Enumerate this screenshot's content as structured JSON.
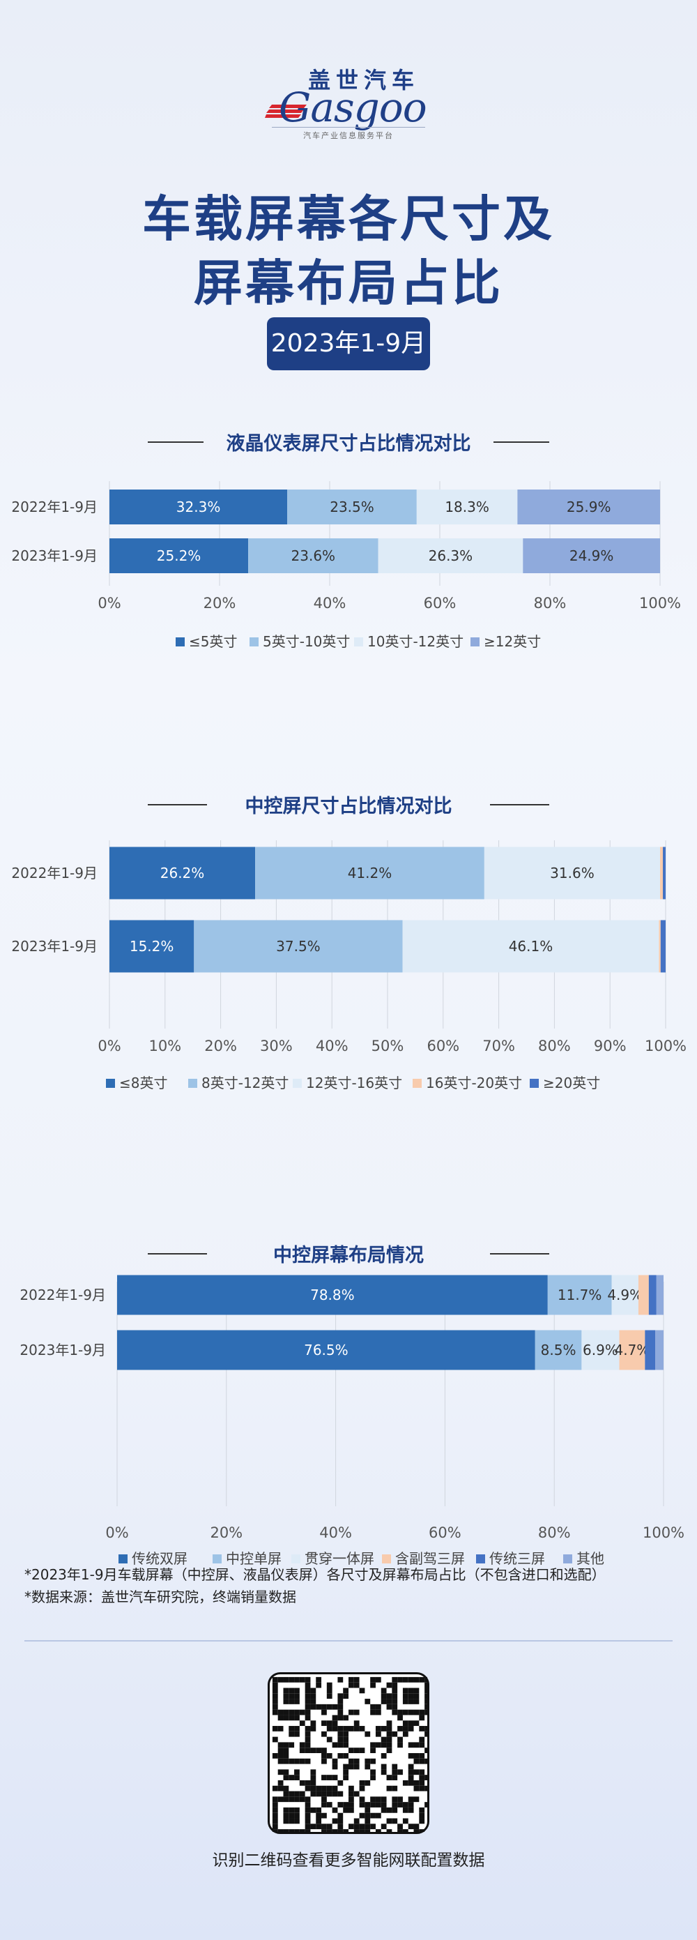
{
  "brand": {
    "name_cn": "盖世汽车",
    "name_en": "Gasgoo",
    "tagline": "汽车产业信息服务平台"
  },
  "title": {
    "line1": "车载屏幕各尺寸及",
    "line2": "屏幕布局占比"
  },
  "period_badge": "2023年1-9月",
  "colors": {
    "title": "#1e3f85",
    "series": [
      "#2e6db4",
      "#9dc3e6",
      "#deebf7",
      "#f8cbad",
      "#4472c4",
      "#8faadc"
    ]
  },
  "chart_data": [
    {
      "type": "bar",
      "orientation": "horizontal",
      "stacked": true,
      "title": "液晶仪表屏尺寸占比情况对比",
      "categories": [
        "2022年1-9月",
        "2023年1-9月"
      ],
      "series": [
        {
          "name": "≤5英寸",
          "color": "#2e6db4",
          "values": [
            32.3,
            25.2
          ],
          "labels": [
            "32.3%",
            "25.2%"
          ]
        },
        {
          "name": "5英寸-10英寸",
          "color": "#9dc3e6",
          "values": [
            23.5,
            23.6
          ],
          "labels": [
            "23.5%",
            "23.6%"
          ]
        },
        {
          "name": "10英寸-12英寸",
          "color": "#deebf7",
          "values": [
            18.3,
            26.3
          ],
          "labels": [
            "18.3%",
            "26.3%"
          ]
        },
        {
          "name": "≥12英寸",
          "color": "#8faadc",
          "values": [
            25.9,
            24.9
          ],
          "labels": [
            "25.9%",
            "24.9%"
          ]
        }
      ],
      "xlim": [
        0,
        100
      ],
      "xticks": [
        "0%",
        "20%",
        "40%",
        "60%",
        "80%",
        "100%"
      ],
      "legend": "bottom",
      "grid": true
    },
    {
      "type": "bar",
      "orientation": "horizontal",
      "stacked": true,
      "title": "中控屏尺寸占比情况对比",
      "categories": [
        "2022年1-9月",
        "2023年1-9月"
      ],
      "series": [
        {
          "name": "≤8英寸",
          "color": "#2e6db4",
          "values": [
            26.2,
            15.2
          ],
          "labels": [
            "26.2%",
            "15.2%"
          ]
        },
        {
          "name": "8英寸-12英寸",
          "color": "#9dc3e6",
          "values": [
            41.2,
            37.5
          ],
          "labels": [
            "41.2%",
            "37.5%"
          ]
        },
        {
          "name": "12英寸-16英寸",
          "color": "#deebf7",
          "values": [
            31.6,
            46.1
          ],
          "labels": [
            "31.6%",
            "46.1%"
          ]
        },
        {
          "name": "16英寸-20英寸",
          "color": "#f8cbad",
          "values": [
            0.5,
            0.3
          ],
          "labels": [
            "",
            ""
          ]
        },
        {
          "name": "≥20英寸",
          "color": "#4472c4",
          "values": [
            0.5,
            0.9
          ],
          "labels": [
            "",
            ""
          ]
        }
      ],
      "xlim": [
        0,
        100
      ],
      "xticks": [
        "0%",
        "10%",
        "20%",
        "30%",
        "40%",
        "50%",
        "60%",
        "70%",
        "80%",
        "90%",
        "100%"
      ],
      "legend": "bottom",
      "grid": true
    },
    {
      "type": "bar",
      "orientation": "horizontal",
      "stacked": true,
      "title": "中控屏幕布局情况",
      "categories": [
        "2022年1-9月",
        "2023年1-9月"
      ],
      "series": [
        {
          "name": "传统双屏",
          "color": "#2e6db4",
          "values": [
            78.8,
            76.5
          ],
          "labels": [
            "78.8%",
            "76.5%"
          ]
        },
        {
          "name": "中控单屏",
          "color": "#9dc3e6",
          "values": [
            11.7,
            8.5
          ],
          "labels": [
            "11.7%",
            "8.5%"
          ]
        },
        {
          "name": "贯穿一体屏",
          "color": "#deebf7",
          "values": [
            4.9,
            6.9
          ],
          "labels": [
            "4.9%",
            "6.9%"
          ]
        },
        {
          "name": "含副驾三屏",
          "color": "#f8cbad",
          "values": [
            1.9,
            4.7
          ],
          "labels": [
            "",
            "4.7%"
          ]
        },
        {
          "name": "传统三屏",
          "color": "#4472c4",
          "values": [
            1.4,
            1.9
          ],
          "labels": [
            "",
            ""
          ]
        },
        {
          "name": "其他",
          "color": "#8faadc",
          "values": [
            1.3,
            1.5
          ],
          "labels": [
            "",
            ""
          ]
        }
      ],
      "xlim": [
        0,
        100
      ],
      "xticks": [
        "0%",
        "20%",
        "40%",
        "60%",
        "80%",
        "100%"
      ],
      "legend": "bottom",
      "grid": true
    }
  ],
  "notes": [
    "*2023年1-9月车载屏幕（中控屏、液晶仪表屏）各尺寸及屏幕布局占比（不包含进口和选配）",
    "*数据来源：盖世汽车研究院，终端销量数据"
  ],
  "qr_caption": "识别二维码查看更多智能网联配置数据"
}
